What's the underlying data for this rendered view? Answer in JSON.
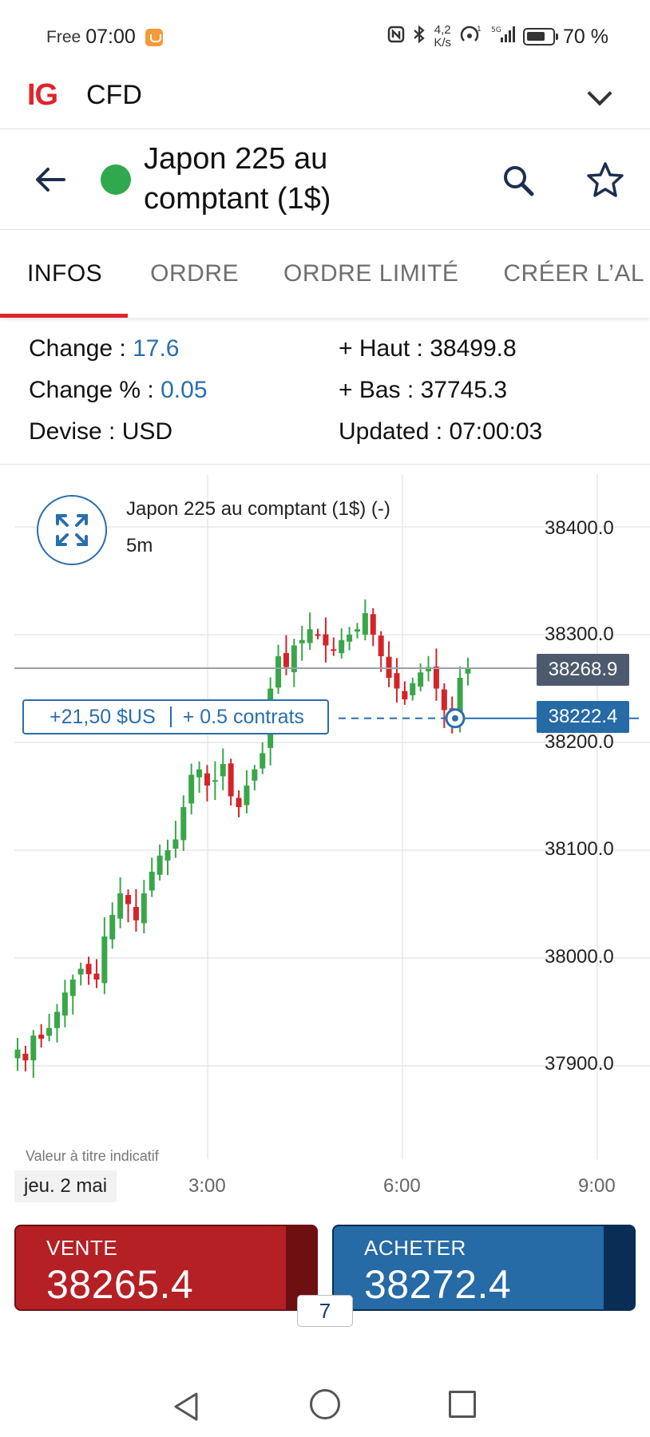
{
  "status_bar": {
    "carrier": "Free",
    "time": "07:00",
    "net_speed_top": "4,2",
    "net_speed_bottom": "K/s",
    "battery": "70 %",
    "icons": [
      "nfc-icon",
      "bluetooth-icon",
      "hotspot-icon",
      "signal-icon",
      "battery-icon"
    ]
  },
  "app_bar": {
    "logo": "IG",
    "title": "CFD",
    "logo_color": "#e2232a"
  },
  "instrument": {
    "name": "Japon 225 au comptant (1$)",
    "status_color": "#2fa84f"
  },
  "tabs": [
    {
      "label": "INFOS",
      "active": true
    },
    {
      "label": "ORDRE",
      "active": false
    },
    {
      "label": "ORDRE LIMITÉ",
      "active": false
    },
    {
      "label": "CRÉER L’AL",
      "active": false
    }
  ],
  "info": {
    "change_label": "Change : ",
    "change_value": "17.6",
    "change_pct_label": "Change % : ",
    "change_pct_value": "0.05",
    "currency_label": "Devise : ",
    "currency_value": "USD",
    "high_label": "+ Haut : ",
    "high_value": "38499.8",
    "low_label": "+ Bas : ",
    "low_value": "37745.3",
    "updated_label": "Updated : ",
    "updated_value": "07:00:03"
  },
  "chart": {
    "title": "Japon 225 au comptant (1$) (-)",
    "interval": "5m",
    "disclaimer": "Valeur à titre indicatif",
    "date_label": "jeu. 2 mai",
    "position_pnl": "+21,50 $US",
    "position_size": "+ 0.5 contrats",
    "current_price_tag": "38268.9",
    "position_price_tag": "38222.4",
    "up_color": "#3aa64a",
    "down_color": "#d4242a"
  },
  "chart_data": {
    "type": "candlestick",
    "interval": "5m",
    "y_ticks": [
      "38400.0",
      "38300.0",
      "38200.0",
      "38100.0",
      "38000.0",
      "37900.0"
    ],
    "y_tick_values": [
      38400,
      38300,
      38200,
      38100,
      38000,
      37900
    ],
    "x_ticks": [
      "3:00",
      "6:00",
      "9:00"
    ],
    "ylim": [
      37860,
      38435
    ],
    "reference_lines": [
      {
        "name": "current",
        "value": 38268.9
      },
      {
        "name": "position",
        "value": 38222.4
      }
    ],
    "close_path": [
      37915,
      37905,
      37928,
      37925,
      37935,
      37950,
      37968,
      37980,
      37990,
      37985,
      37980,
      38020,
      38040,
      38060,
      38050,
      38035,
      38060,
      38080,
      38095,
      38100,
      38110,
      38140,
      38170,
      38175,
      38160,
      38165,
      38180,
      38150,
      38140,
      38160,
      38175,
      38190,
      38250,
      38280,
      38270,
      38290,
      38295,
      38305,
      38300,
      38290,
      38285,
      38295,
      38300,
      38305,
      38320,
      38300,
      38280,
      38260,
      38250,
      38240,
      38255,
      38265,
      38270,
      38250,
      38230,
      38225,
      38260,
      38268.9
    ]
  },
  "trade": {
    "sell_label": "VENTE",
    "sell_price": "38265.4",
    "buy_label": "ACHETER",
    "buy_price": "38272.4",
    "spread": "7",
    "sell_color": "#b52024",
    "buy_color": "#266aa6"
  }
}
